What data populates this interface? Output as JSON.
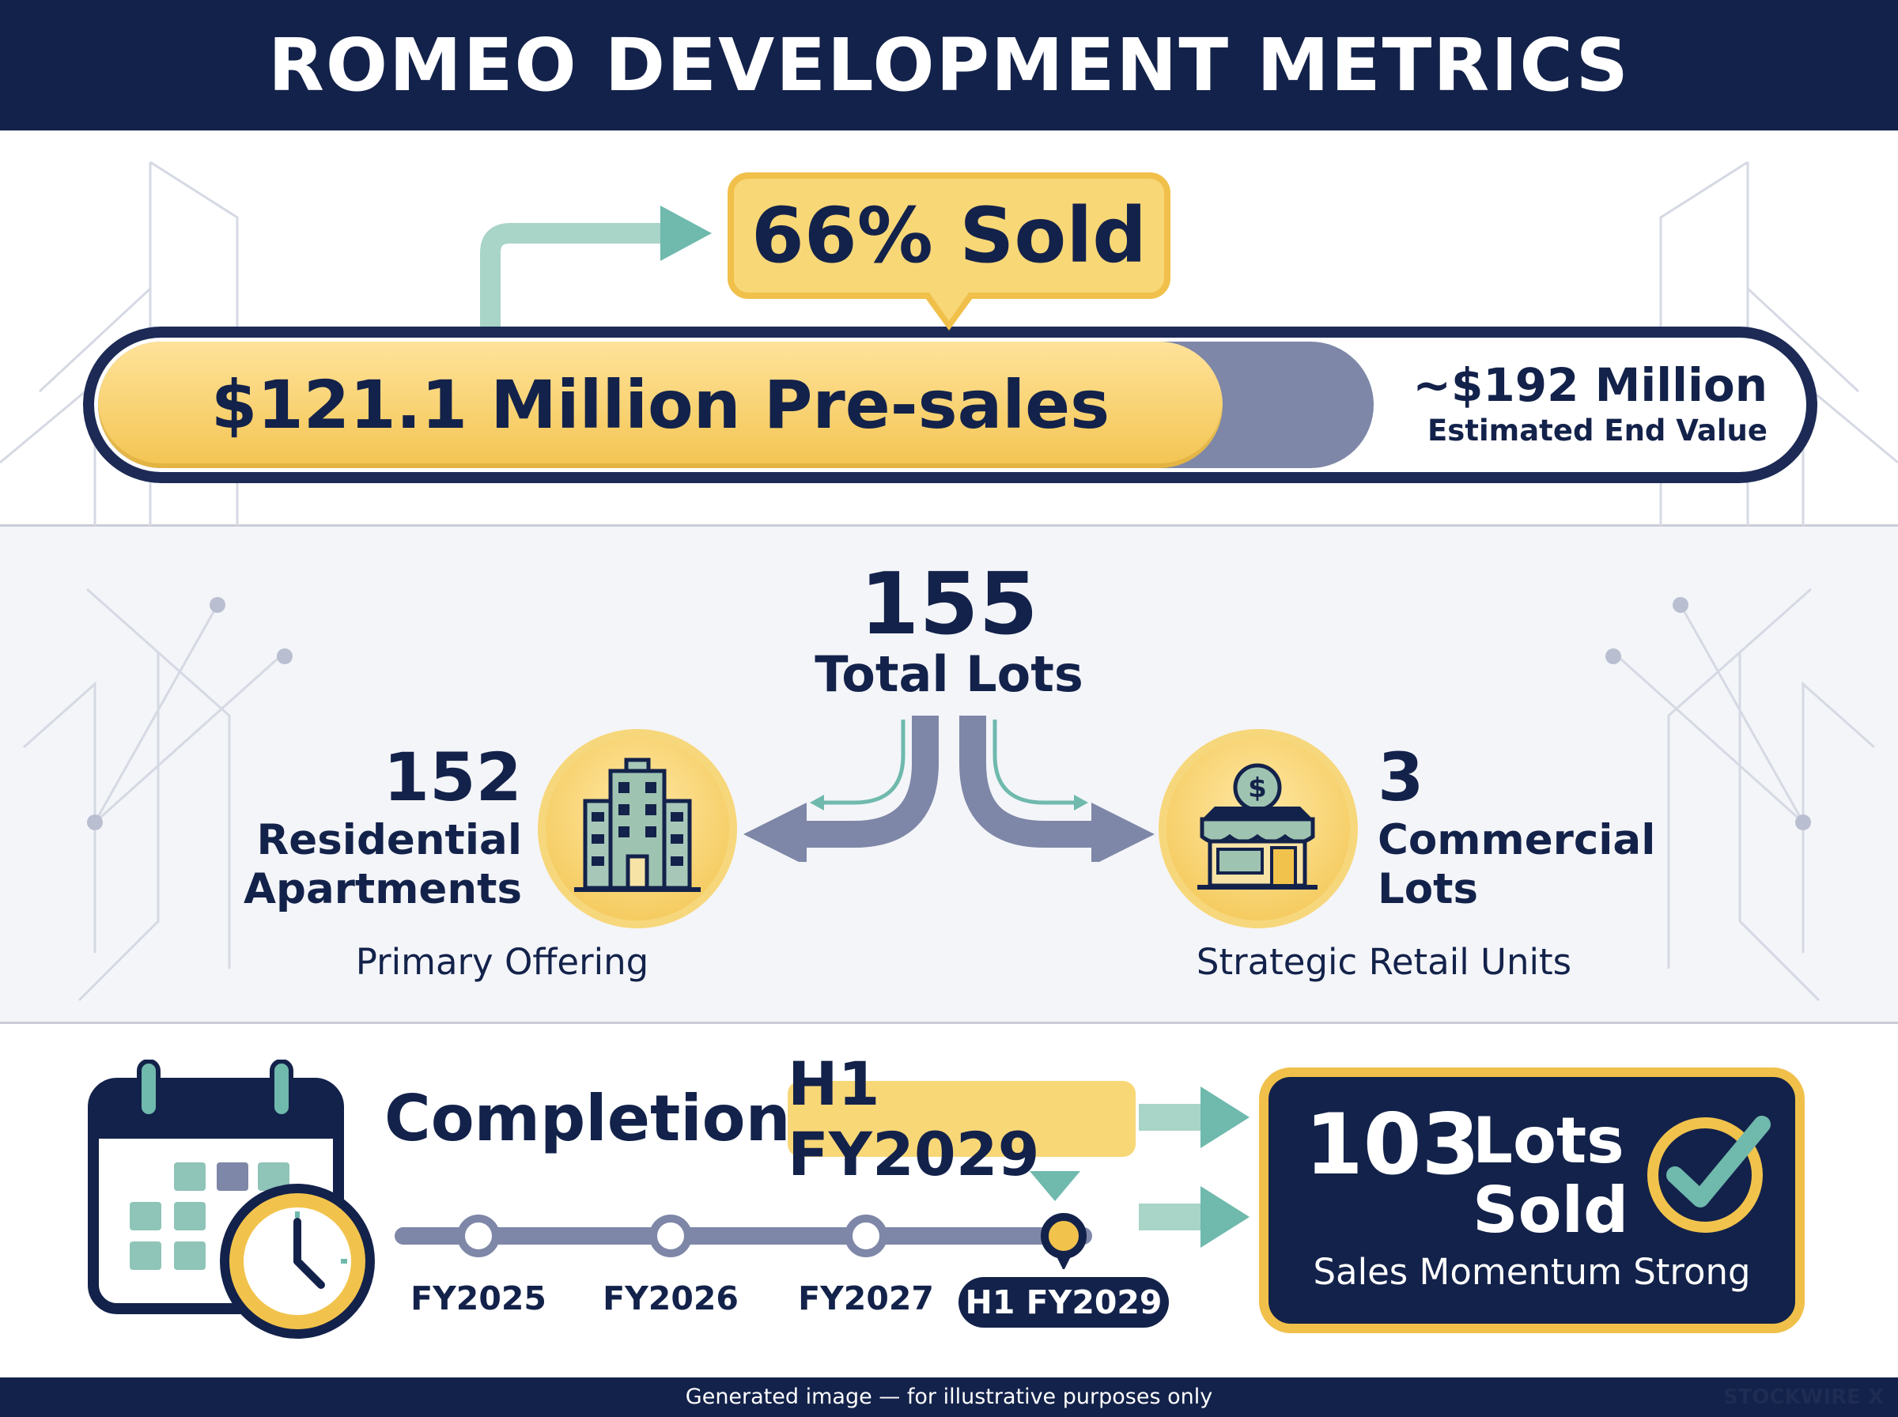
{
  "header": {
    "title": "ROMEO DEVELOPMENT METRICS"
  },
  "presales": {
    "sold_label": "66% Sold",
    "sold_fraction": 0.66,
    "amount_label": "$121.1 Million Pre-sales",
    "end_value_amount": "~$192 Million",
    "end_value_label": "Estimated End Value"
  },
  "lots": {
    "total_value": "155",
    "total_label": "Total Lots",
    "residential": {
      "value": "152",
      "label_line1": "Residential",
      "label_line2": "Apartments",
      "sub": "Primary Offering",
      "icon": "apartment-building-icon"
    },
    "commercial": {
      "value": "3",
      "label_line1": "Commercial",
      "label_line2": "Lots",
      "sub": "Strategic Retail Units",
      "icon": "storefront-dollar-icon"
    }
  },
  "completion": {
    "prefix": "Completion:",
    "value": "H1 FY2029",
    "timeline": [
      "FY2025",
      "FY2026",
      "FY2027",
      "H1 FY2029"
    ],
    "active_index": 3
  },
  "sales": {
    "lots_sold_value": "103",
    "lots_sold_word1": "Lots",
    "lots_sold_word2": "Sold",
    "momentum": "Sales Momentum Strong"
  },
  "footer": {
    "note": "Generated image — for illustrative purposes only",
    "watermark": "STOCKWIRE X"
  },
  "colors": {
    "navy": "#13224a",
    "gold": "#f3c451",
    "teal": "#6fb9ad",
    "slate": "#7e87a7"
  }
}
